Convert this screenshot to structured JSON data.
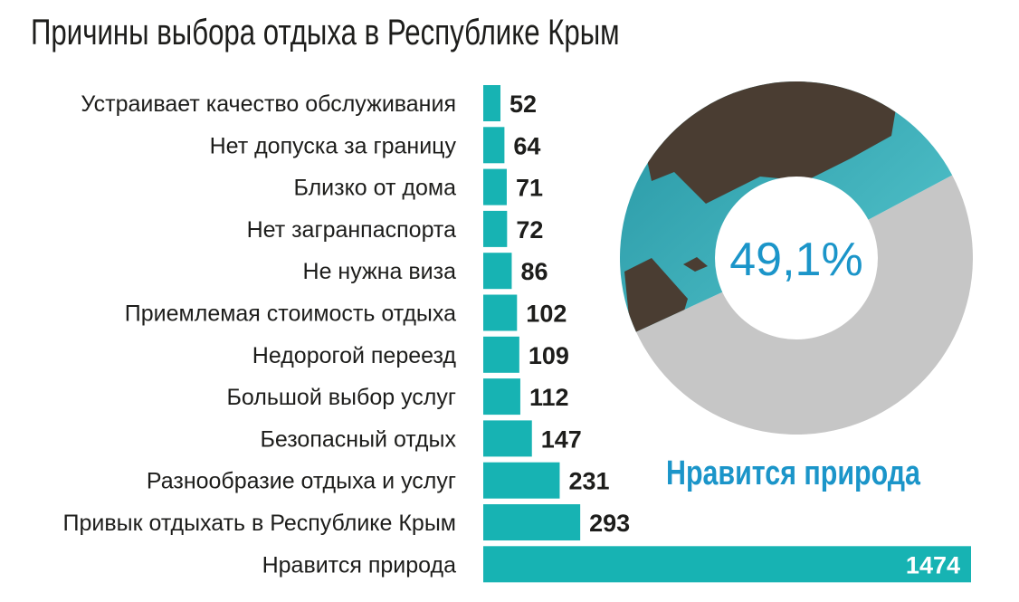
{
  "title": "Причины выбора отдыха в Республике Крым",
  "colors": {
    "bar": "#17b3b3",
    "donut_rest": "#c6c6c6",
    "sea_light": "#5fd0d6",
    "sea_dark": "#1f8e9d",
    "rock": "#4a3d32",
    "accent_text": "#1b95c9"
  },
  "chart_data": [
    {
      "type": "bar",
      "orientation": "horizontal",
      "categories": [
        "Устраивает качество обслуживания",
        "Нет допуска за границу",
        "Близко от дома",
        "Нет загранпаспорта",
        "Не нужна виза",
        "Приемлемая стоимость отдыха",
        "Недорогой переезд",
        "Большой выбор услуг",
        "Безопасный отдых",
        "Разнообразие отдыха и услуг",
        "Привык отдыхать в Республике Крым",
        "Нравится природа"
      ],
      "values": [
        52,
        64,
        71,
        72,
        86,
        102,
        109,
        112,
        147,
        231,
        293,
        1474
      ],
      "value_labels": [
        "52",
        "64",
        "71",
        "72",
        "86",
        "102",
        "109",
        "112",
        "147",
        "231",
        "293",
        "1474"
      ]
    },
    {
      "type": "pie",
      "donut": true,
      "slices": [
        {
          "label": "Нравится природа",
          "value": 49.1
        },
        {
          "label": "",
          "value": 50.9
        }
      ],
      "center_label": "49,1%",
      "caption": "Нравится природа"
    }
  ]
}
